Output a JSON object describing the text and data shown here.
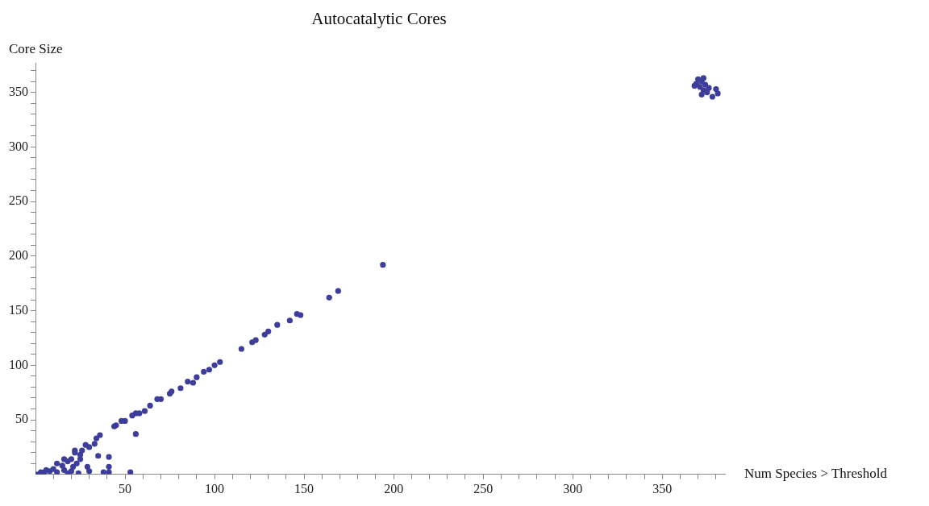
{
  "chart_data": {
    "type": "scatter",
    "title": "Autocatalytic Cores",
    "xlabel": "Num Species > Threshold",
    "ylabel": "Core Size",
    "xlim": [
      0,
      385
    ],
    "ylim": [
      0,
      377
    ],
    "xticks": [
      {
        "value": 10,
        "label": null
      },
      {
        "value": 20,
        "label": null
      },
      {
        "value": 30,
        "label": null
      },
      {
        "value": 40,
        "label": null
      },
      50,
      {
        "value": 60,
        "label": null
      },
      {
        "value": 70,
        "label": null
      },
      {
        "value": 80,
        "label": null
      },
      {
        "value": 90,
        "label": null
      },
      100,
      {
        "value": 110,
        "label": null
      },
      {
        "value": 120,
        "label": null
      },
      {
        "value": 130,
        "label": null
      },
      {
        "value": 140,
        "label": null
      },
      150,
      {
        "value": 160,
        "label": null
      },
      {
        "value": 170,
        "label": null
      },
      {
        "value": 180,
        "label": null
      },
      {
        "value": 190,
        "label": null
      },
      200,
      {
        "value": 210,
        "label": null
      },
      {
        "value": 220,
        "label": null
      },
      {
        "value": 230,
        "label": null
      },
      {
        "value": 240,
        "label": null
      },
      250,
      {
        "value": 260,
        "label": null
      },
      {
        "value": 270,
        "label": null
      },
      {
        "value": 280,
        "label": null
      },
      {
        "value": 290,
        "label": null
      },
      300,
      {
        "value": 310,
        "label": null
      },
      {
        "value": 320,
        "label": null
      },
      {
        "value": 330,
        "label": null
      },
      {
        "value": 340,
        "label": null
      },
      350,
      {
        "value": 360,
        "label": null
      },
      {
        "value": 370,
        "label": null
      },
      {
        "value": 380,
        "label": null
      }
    ],
    "yticks": [
      {
        "value": 10,
        "label": null
      },
      {
        "value": 20,
        "label": null
      },
      {
        "value": 30,
        "label": null
      },
      {
        "value": 40,
        "label": null
      },
      50,
      {
        "value": 60,
        "label": null
      },
      {
        "value": 70,
        "label": null
      },
      {
        "value": 80,
        "label": null
      },
      {
        "value": 90,
        "label": null
      },
      100,
      {
        "value": 110,
        "label": null
      },
      {
        "value": 120,
        "label": null
      },
      {
        "value": 130,
        "label": null
      },
      {
        "value": 140,
        "label": null
      },
      150,
      {
        "value": 160,
        "label": null
      },
      {
        "value": 170,
        "label": null
      },
      {
        "value": 180,
        "label": null
      },
      {
        "value": 190,
        "label": null
      },
      200,
      {
        "value": 210,
        "label": null
      },
      {
        "value": 220,
        "label": null
      },
      {
        "value": 230,
        "label": null
      },
      {
        "value": 240,
        "label": null
      },
      250,
      {
        "value": 260,
        "label": null
      },
      {
        "value": 270,
        "label": null
      },
      {
        "value": 280,
        "label": null
      },
      {
        "value": 290,
        "label": null
      },
      300,
      {
        "value": 310,
        "label": null
      },
      {
        "value": 320,
        "label": null
      },
      {
        "value": 330,
        "label": null
      },
      {
        "value": 340,
        "label": null
      },
      350,
      {
        "value": 360,
        "label": null
      },
      {
        "value": 370,
        "label": null
      }
    ],
    "grid": false,
    "legend": false,
    "marker": "circle",
    "series": [
      {
        "color": "#3d3d9b",
        "x": [
          1,
          3,
          5,
          6,
          8,
          10,
          12,
          12,
          15,
          16,
          16,
          18,
          18,
          20,
          20,
          21,
          22,
          22,
          23,
          24,
          25,
          25,
          26,
          28,
          29,
          30,
          30,
          33,
          34,
          35,
          36,
          38,
          41,
          41,
          41,
          44,
          45,
          48,
          50,
          53,
          54,
          56,
          56,
          58,
          61,
          64,
          68,
          70,
          75,
          76,
          81,
          85,
          88,
          90,
          94,
          97,
          100,
          103,
          115,
          121,
          123,
          128,
          130,
          135,
          142,
          146,
          148,
          164,
          169,
          194,
          368,
          369,
          370,
          371,
          372,
          372,
          373,
          373,
          374,
          375,
          376,
          378,
          380,
          381
        ],
        "values": [
          0,
          2,
          2,
          4,
          3,
          5,
          10,
          2,
          8,
          14,
          4,
          12,
          1,
          14,
          3,
          7,
          22,
          20,
          10,
          1,
          14,
          18,
          22,
          27,
          7,
          3,
          25,
          28,
          33,
          17,
          36,
          2,
          16,
          7,
          2,
          44,
          45,
          49,
          49,
          2,
          54,
          56,
          37,
          56,
          58,
          63,
          69,
          69,
          74,
          76,
          79,
          85,
          84,
          89,
          94,
          96,
          100,
          103,
          115,
          121,
          123,
          128,
          131,
          137,
          141,
          147,
          146,
          162,
          168,
          192,
          356,
          358,
          362,
          355,
          360,
          348,
          352,
          363,
          357,
          350,
          354,
          346,
          353,
          349
        ]
      }
    ]
  }
}
